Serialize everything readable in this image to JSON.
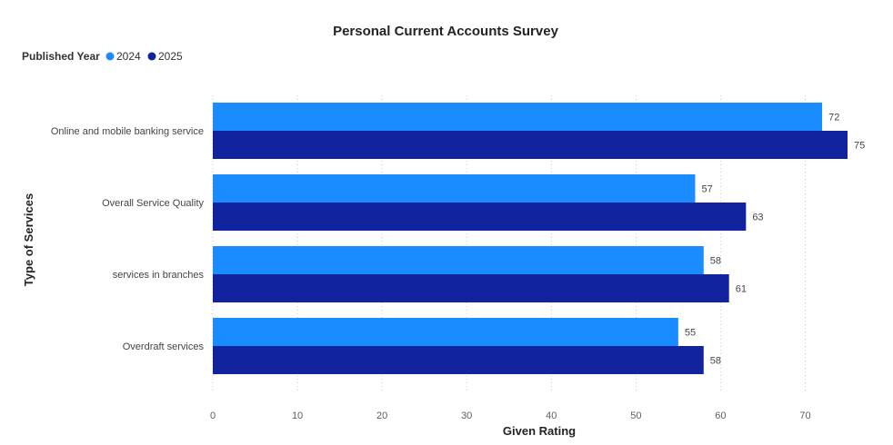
{
  "chart_data": {
    "type": "bar",
    "orientation": "horizontal",
    "title": "Personal Current Accounts Survey",
    "legend_title": "Published Year",
    "xlabel": "Given Rating",
    "ylabel": "Type of Services",
    "categories": [
      "Online and mobile banking service",
      "Overall Service Quality",
      "services in branches",
      "Overdraft services"
    ],
    "series": [
      {
        "name": "2024",
        "color": "#1a8cff",
        "values": [
          72,
          57,
          58,
          55
        ]
      },
      {
        "name": "2025",
        "color": "#12239e",
        "values": [
          75,
          63,
          61,
          58
        ]
      }
    ],
    "xlim": [
      0,
      75
    ],
    "xticks": [
      0,
      10,
      20,
      30,
      40,
      50,
      60,
      70
    ],
    "grid": true,
    "legend_position": "top-left",
    "data_labels": true
  }
}
